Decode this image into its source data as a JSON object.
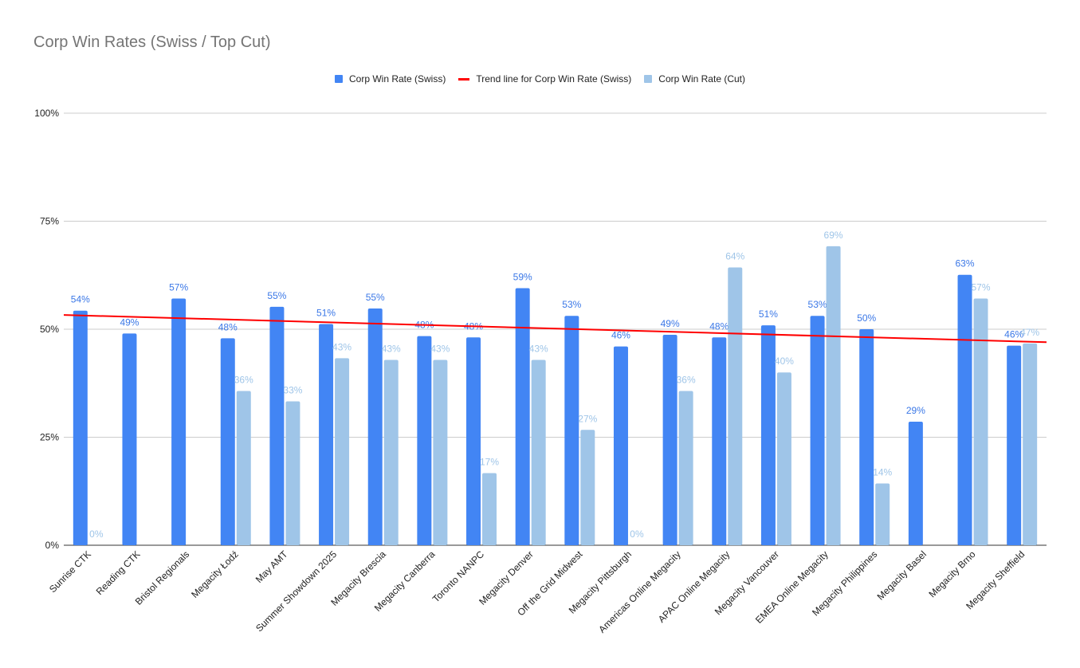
{
  "chart_data": {
    "type": "bar",
    "title": "Corp Win Rates (Swiss / Top Cut)",
    "xlabel": "",
    "ylabel": "",
    "ylim": [
      0,
      1
    ],
    "yticks": [
      "0%",
      "25%",
      "50%",
      "75%",
      "100%"
    ],
    "ytick_values": [
      0,
      0.25,
      0.5,
      0.75,
      1.0
    ],
    "grid": true,
    "legend_position": "top",
    "categories": [
      "Sunrise CTK",
      "Reading CTK",
      "Bristol Regionals",
      "Megacity Łodź",
      "May AMT",
      "Summer Showdown 2025",
      "Megacity Brescia",
      "Megacity Canberra",
      "Toronto NANPC",
      "Megacity Denver",
      "Off the Grid Midwest",
      "Megacity Pittsburgh",
      "Americas Online Megacity",
      "APAC Online Megacity",
      "Megacity Vancouver",
      "EMEA Online Megacity",
      "Megacity Philippines",
      "Megacity Basel",
      "Megacity Brno",
      "Megacity Sheffield"
    ],
    "series": [
      {
        "name": "Corp Win Rate (Swiss)",
        "color": "#4285f4",
        "values": [
          0.543,
          0.49,
          0.571,
          0.479,
          0.552,
          0.512,
          0.548,
          0.484,
          0.481,
          0.595,
          0.531,
          0.46,
          0.487,
          0.481,
          0.509,
          0.531,
          0.5,
          0.286,
          0.626,
          0.462
        ],
        "labels": [
          "54%",
          "49%",
          "57%",
          "48%",
          "55%",
          "51%",
          "55%",
          "48%",
          "48%",
          "59%",
          "53%",
          "46%",
          "49%",
          "48%",
          "51%",
          "53%",
          "50%",
          "29%",
          "63%",
          "46%"
        ]
      },
      {
        "name": "Corp Win Rate (Cut)",
        "color": "#9fc5e8",
        "values": [
          0,
          null,
          null,
          0.357,
          0.333,
          0.433,
          0.429,
          0.429,
          0.167,
          0.429,
          0.267,
          0,
          0.357,
          0.643,
          0.4,
          0.692,
          0.143,
          null,
          0.571,
          0.467
        ],
        "labels": [
          "0%",
          "",
          "",
          "36%",
          "33%",
          "43%",
          "43%",
          "43%",
          "17%",
          "43%",
          "27%",
          "0%",
          "36%",
          "64%",
          "40%",
          "69%",
          "14%",
          "",
          "57%",
          "47%"
        ]
      }
    ],
    "trendline": {
      "name": "Trend line for Corp Win Rate (Swiss)",
      "color": "#ff0000",
      "start": 0.533,
      "end": 0.47
    }
  }
}
